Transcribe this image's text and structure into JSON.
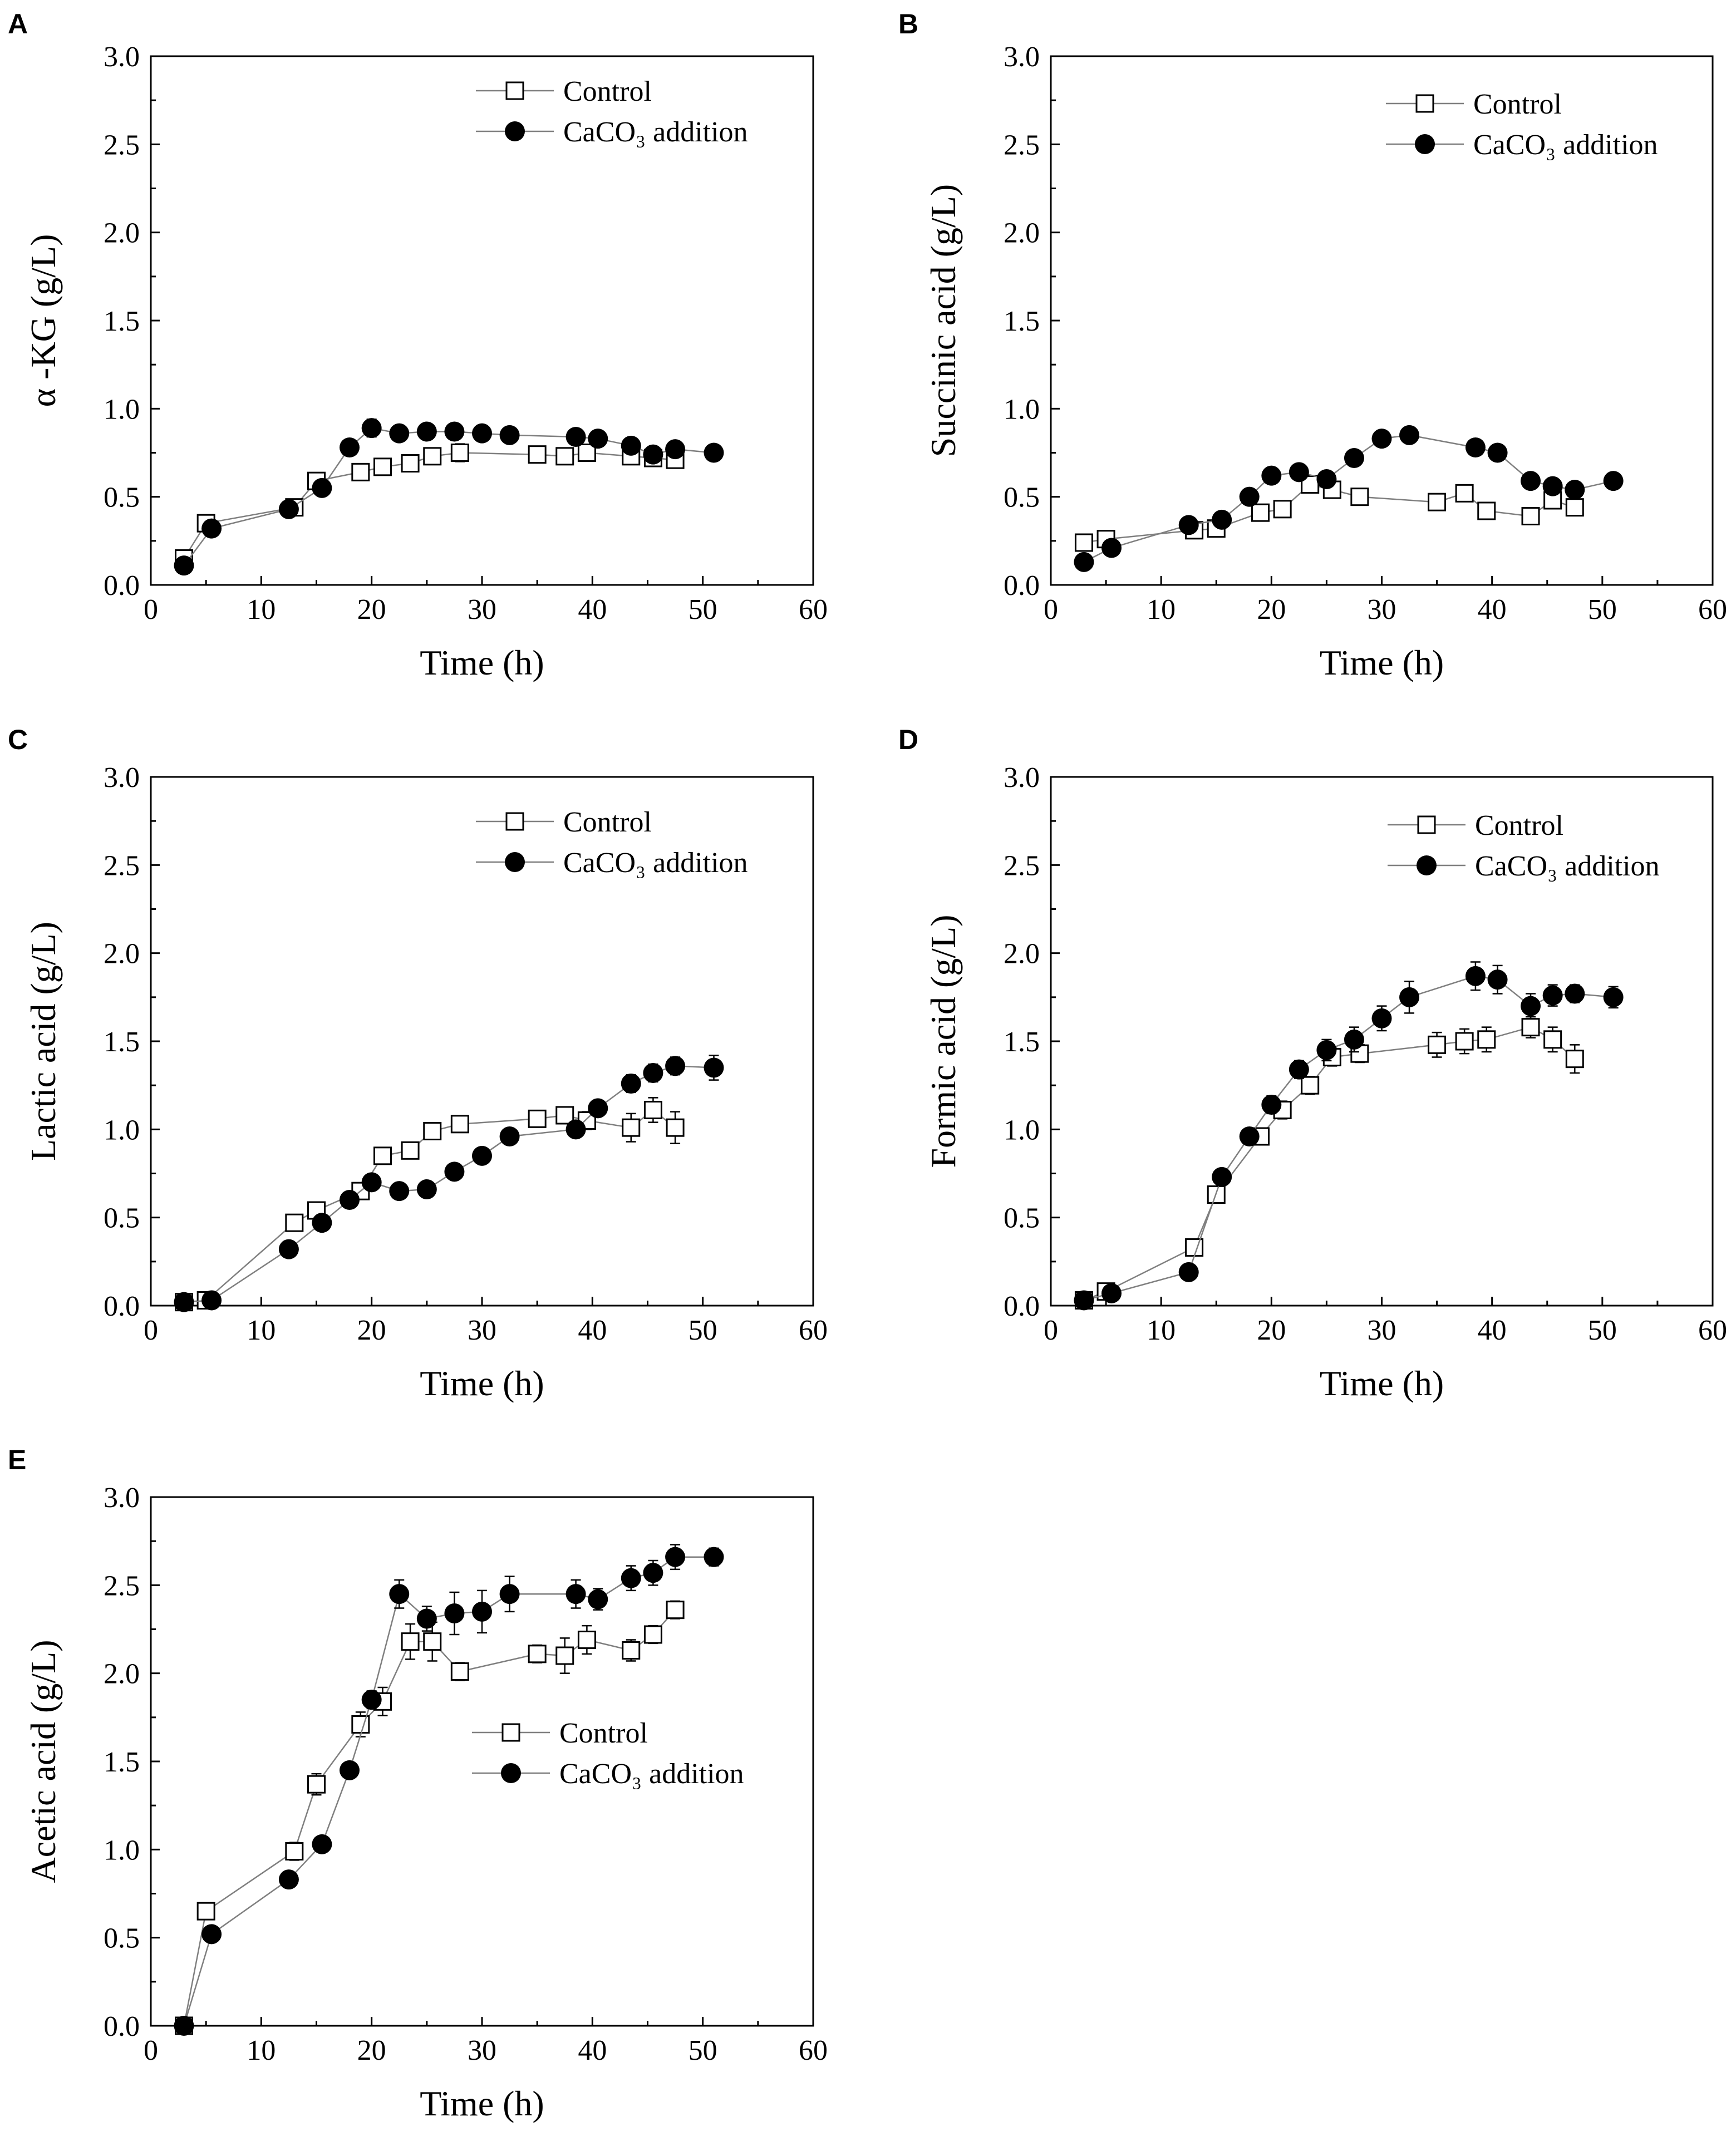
{
  "figure": {
    "colors": {
      "ink": "#000000",
      "line": "#7f7f7f",
      "open_fill": "#ffffff",
      "closed_fill": "#000000"
    }
  },
  "chart_data": [
    {
      "panel": "A",
      "type": "line",
      "xlabel": "Time (h)",
      "ylabel": "α -KG (g/L)",
      "xlim": [
        0,
        60
      ],
      "ylim": [
        0,
        3.0
      ],
      "xticks": [
        "0",
        "10",
        "20",
        "30",
        "40",
        "50",
        "60"
      ],
      "yticks": [
        "0.0",
        "0.5",
        "1.0",
        "1.5",
        "2.0",
        "2.5",
        "3.0"
      ],
      "legend_position": "top-right",
      "series": [
        {
          "name": "Control",
          "marker": "open-square",
          "x": [
            3,
            5,
            13,
            15,
            19,
            21,
            23.5,
            25.5,
            28,
            35,
            37.5,
            39.5,
            43.5,
            45.5,
            47.5
          ],
          "y": [
            0.15,
            0.35,
            0.44,
            0.59,
            0.64,
            0.67,
            0.69,
            0.73,
            0.75,
            0.74,
            0.73,
            0.75,
            0.73,
            0.72,
            0.71
          ],
          "err": [
            0.02,
            0.02,
            0.03,
            0.03,
            0.02,
            0.03,
            0.03,
            0.04,
            0.05,
            0.03,
            0.03,
            0.03,
            0.03,
            0.03,
            0.03
          ]
        },
        {
          "name": "CaCO₃ addition",
          "marker": "filled-circle",
          "x": [
            3,
            5.5,
            12.5,
            15.5,
            18,
            20,
            22.5,
            25,
            27.5,
            30,
            32.5,
            38.5,
            40.5,
            43.5,
            45.5,
            47.5,
            51
          ],
          "y": [
            0.11,
            0.32,
            0.43,
            0.55,
            0.78,
            0.89,
            0.86,
            0.87,
            0.87,
            0.86,
            0.85,
            0.84,
            0.83,
            0.79,
            0.74,
            0.77,
            0.75
          ],
          "err": [
            0.02,
            0.02,
            0.02,
            0.03,
            0.03,
            0.05,
            0.04,
            0.04,
            0.04,
            0.04,
            0.03,
            0.04,
            0.04,
            0.03,
            0.04,
            0.03,
            0.03
          ]
        }
      ]
    },
    {
      "panel": "B",
      "type": "line",
      "xlabel": "Time (h)",
      "ylabel": "Succinic acid (g/L)",
      "xlim": [
        0,
        60
      ],
      "ylim": [
        0,
        3.0
      ],
      "xticks": [
        "0",
        "10",
        "20",
        "30",
        "40",
        "50",
        "60"
      ],
      "yticks": [
        "0.0",
        "0.5",
        "1.0",
        "1.5",
        "2.0",
        "2.5",
        "3.0"
      ],
      "legend_position": "top-right",
      "series": [
        {
          "name": "Control",
          "marker": "open-square",
          "x": [
            3,
            5,
            13,
            15,
            19,
            21,
            23.5,
            25.5,
            28,
            35,
            37.5,
            39.5,
            43.5,
            45.5,
            47.5
          ],
          "y": [
            0.24,
            0.26,
            0.31,
            0.32,
            0.41,
            0.43,
            0.57,
            0.54,
            0.5,
            0.47,
            0.52,
            0.42,
            0.39,
            0.48,
            0.44
          ],
          "err": [
            0.02,
            0.02,
            0.03,
            0.03,
            0.03,
            0.03,
            0.03,
            0.03,
            0.03,
            0.03,
            0.03,
            0.04,
            0.03,
            0.03,
            0.03
          ]
        },
        {
          "name": "CaCO₃ addition",
          "marker": "filled-circle",
          "x": [
            3,
            5.5,
            12.5,
            15.5,
            18,
            20,
            22.5,
            25,
            27.5,
            30,
            32.5,
            38.5,
            40.5,
            43.5,
            45.5,
            47.5,
            51
          ],
          "y": [
            0.13,
            0.21,
            0.34,
            0.37,
            0.5,
            0.62,
            0.64,
            0.6,
            0.72,
            0.83,
            0.85,
            0.78,
            0.75,
            0.59,
            0.56,
            0.54,
            0.59
          ],
          "err": [
            0.02,
            0.02,
            0.02,
            0.02,
            0.03,
            0.03,
            0.03,
            0.03,
            0.03,
            0.03,
            0.03,
            0.03,
            0.03,
            0.03,
            0.03,
            0.03,
            0.03
          ]
        }
      ]
    },
    {
      "panel": "C",
      "type": "line",
      "xlabel": "Time (h)",
      "ylabel": "Lactic acid (g/L)",
      "xlim": [
        0,
        60
      ],
      "ylim": [
        0,
        3.0
      ],
      "xticks": [
        "0",
        "10",
        "20",
        "30",
        "40",
        "50",
        "60"
      ],
      "yticks": [
        "0.0",
        "0.5",
        "1.0",
        "1.5",
        "2.0",
        "2.5",
        "3.0"
      ],
      "legend_position": "top-right",
      "series": [
        {
          "name": "Control",
          "marker": "open-square",
          "x": [
            3,
            5,
            13,
            15,
            19,
            21,
            23.5,
            25.5,
            28,
            35,
            37.5,
            39.5,
            43.5,
            45.5,
            47.5
          ],
          "y": [
            0.02,
            0.03,
            0.47,
            0.54,
            0.65,
            0.85,
            0.88,
            0.99,
            1.03,
            1.06,
            1.08,
            1.05,
            1.01,
            1.11,
            1.01
          ],
          "err": [
            0.01,
            0.01,
            0.03,
            0.04,
            0.04,
            0.04,
            0.03,
            0.04,
            0.03,
            0.04,
            0.04,
            0.05,
            0.08,
            0.07,
            0.09
          ]
        },
        {
          "name": "CaCO₃ addition",
          "marker": "filled-circle",
          "x": [
            3,
            5.5,
            12.5,
            15.5,
            18,
            20,
            22.5,
            25,
            27.5,
            30,
            32.5,
            38.5,
            40.5,
            43.5,
            45.5,
            47.5,
            51
          ],
          "y": [
            0.02,
            0.03,
            0.32,
            0.47,
            0.6,
            0.7,
            0.65,
            0.66,
            0.76,
            0.85,
            0.96,
            1.0,
            1.12,
            1.26,
            1.32,
            1.36,
            1.35
          ],
          "err": [
            0.01,
            0.01,
            0.02,
            0.03,
            0.03,
            0.03,
            0.03,
            0.03,
            0.03,
            0.03,
            0.03,
            0.03,
            0.04,
            0.05,
            0.05,
            0.05,
            0.07
          ]
        }
      ]
    },
    {
      "panel": "D",
      "type": "line",
      "xlabel": "Time (h)",
      "ylabel": "Formic acid (g/L)",
      "xlim": [
        0,
        60
      ],
      "ylim": [
        0,
        3.0
      ],
      "xticks": [
        "0",
        "10",
        "20",
        "30",
        "40",
        "50",
        "60"
      ],
      "yticks": [
        "0.0",
        "0.5",
        "1.0",
        "1.5",
        "2.0",
        "2.5",
        "3.0"
      ],
      "legend_position": "top-right",
      "series": [
        {
          "name": "Control",
          "marker": "open-square",
          "x": [
            3,
            5,
            13,
            15,
            19,
            21,
            23.5,
            25.5,
            28,
            35,
            37.5,
            39.5,
            43.5,
            45.5,
            47.5
          ],
          "y": [
            0.03,
            0.08,
            0.33,
            0.63,
            0.96,
            1.11,
            1.25,
            1.41,
            1.43,
            1.48,
            1.5,
            1.51,
            1.58,
            1.51,
            1.4
          ],
          "err": [
            0.01,
            0.02,
            0.03,
            0.04,
            0.04,
            0.05,
            0.05,
            0.05,
            0.05,
            0.07,
            0.07,
            0.07,
            0.06,
            0.07,
            0.08
          ]
        },
        {
          "name": "CaCO₃ addition",
          "marker": "filled-circle",
          "x": [
            3,
            5.5,
            12.5,
            15.5,
            18,
            20,
            22.5,
            25,
            27.5,
            30,
            32.5,
            38.5,
            40.5,
            43.5,
            45.5,
            47.5,
            51
          ],
          "y": [
            0.03,
            0.07,
            0.19,
            0.73,
            0.96,
            1.14,
            1.34,
            1.45,
            1.51,
            1.63,
            1.75,
            1.87,
            1.85,
            1.7,
            1.76,
            1.77,
            1.75
          ],
          "err": [
            0.01,
            0.01,
            0.02,
            0.03,
            0.04,
            0.05,
            0.05,
            0.06,
            0.07,
            0.07,
            0.09,
            0.08,
            0.08,
            0.07,
            0.06,
            0.05,
            0.06
          ]
        }
      ]
    },
    {
      "panel": "E",
      "type": "line",
      "xlabel": "Time (h)",
      "ylabel": "Acetic acid (g/L)",
      "xlim": [
        0,
        60
      ],
      "ylim": [
        0,
        3.0
      ],
      "xticks": [
        "0",
        "10",
        "20",
        "30",
        "40",
        "50",
        "60"
      ],
      "yticks": [
        "0.0",
        "0.5",
        "1.0",
        "1.5",
        "2.0",
        "2.5",
        "3.0"
      ],
      "legend_position": "center-right",
      "series": [
        {
          "name": "Control",
          "marker": "open-square",
          "x": [
            3,
            5,
            13,
            15,
            19,
            21,
            23.5,
            25.5,
            28,
            35,
            37.5,
            39.5,
            43.5,
            45.5,
            47.5
          ],
          "y": [
            0.0,
            0.65,
            0.99,
            1.37,
            1.71,
            1.84,
            2.18,
            2.18,
            2.01,
            2.11,
            2.1,
            2.19,
            2.13,
            2.22,
            2.36
          ],
          "err": [
            0.01,
            0.02,
            0.05,
            0.06,
            0.07,
            0.08,
            0.1,
            0.11,
            0.05,
            0.05,
            0.1,
            0.08,
            0.06,
            0.05,
            0.05
          ]
        },
        {
          "name": "CaCO₃ addition",
          "marker": "filled-circle",
          "x": [
            3,
            5.5,
            12.5,
            15.5,
            18,
            20,
            22.5,
            25,
            27.5,
            30,
            32.5,
            38.5,
            40.5,
            43.5,
            45.5,
            47.5,
            51
          ],
          "y": [
            0.0,
            0.52,
            0.83,
            1.03,
            1.45,
            1.85,
            2.45,
            2.31,
            2.34,
            2.35,
            2.45,
            2.45,
            2.42,
            2.54,
            2.57,
            2.66,
            2.66
          ],
          "err": [
            0.01,
            0.02,
            0.03,
            0.04,
            0.04,
            0.05,
            0.08,
            0.07,
            0.12,
            0.12,
            0.1,
            0.08,
            0.06,
            0.07,
            0.07,
            0.07,
            0.05
          ]
        }
      ]
    }
  ]
}
